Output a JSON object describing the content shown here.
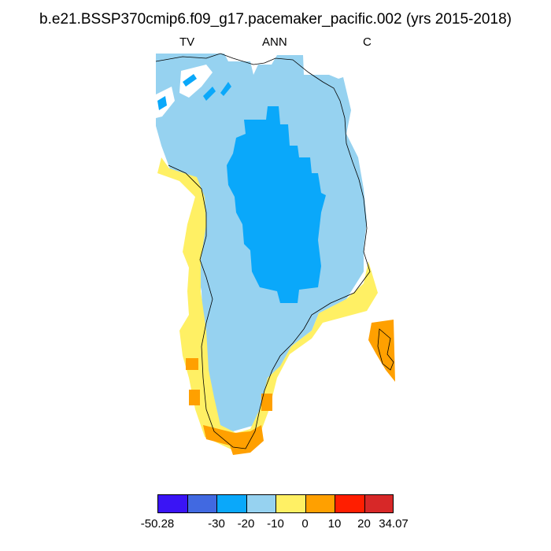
{
  "title": "b.e21.BSSP370cmip6.f09_g17.pacemaker_pacific.002 (yrs 2015-2018)",
  "subtitle": {
    "left": "TV",
    "center": "ANN",
    "right": "C"
  },
  "colorbar": {
    "colors": [
      "#3a14f5",
      "#4169e1",
      "#0aa8fa",
      "#96d2f0",
      "#fff064",
      "#ffa000",
      "#ff1e00",
      "#d72828"
    ],
    "tick_labels": [
      "-50.28",
      "-30",
      "-20",
      "-10",
      "0",
      "10",
      "20",
      "34.07"
    ]
  },
  "map": {
    "region_colors": {
      "interior": "#0aa8fa",
      "mid": "#96d2f0",
      "margin": "#fff064",
      "edge": "#ffa000",
      "outline": "#000000"
    }
  }
}
